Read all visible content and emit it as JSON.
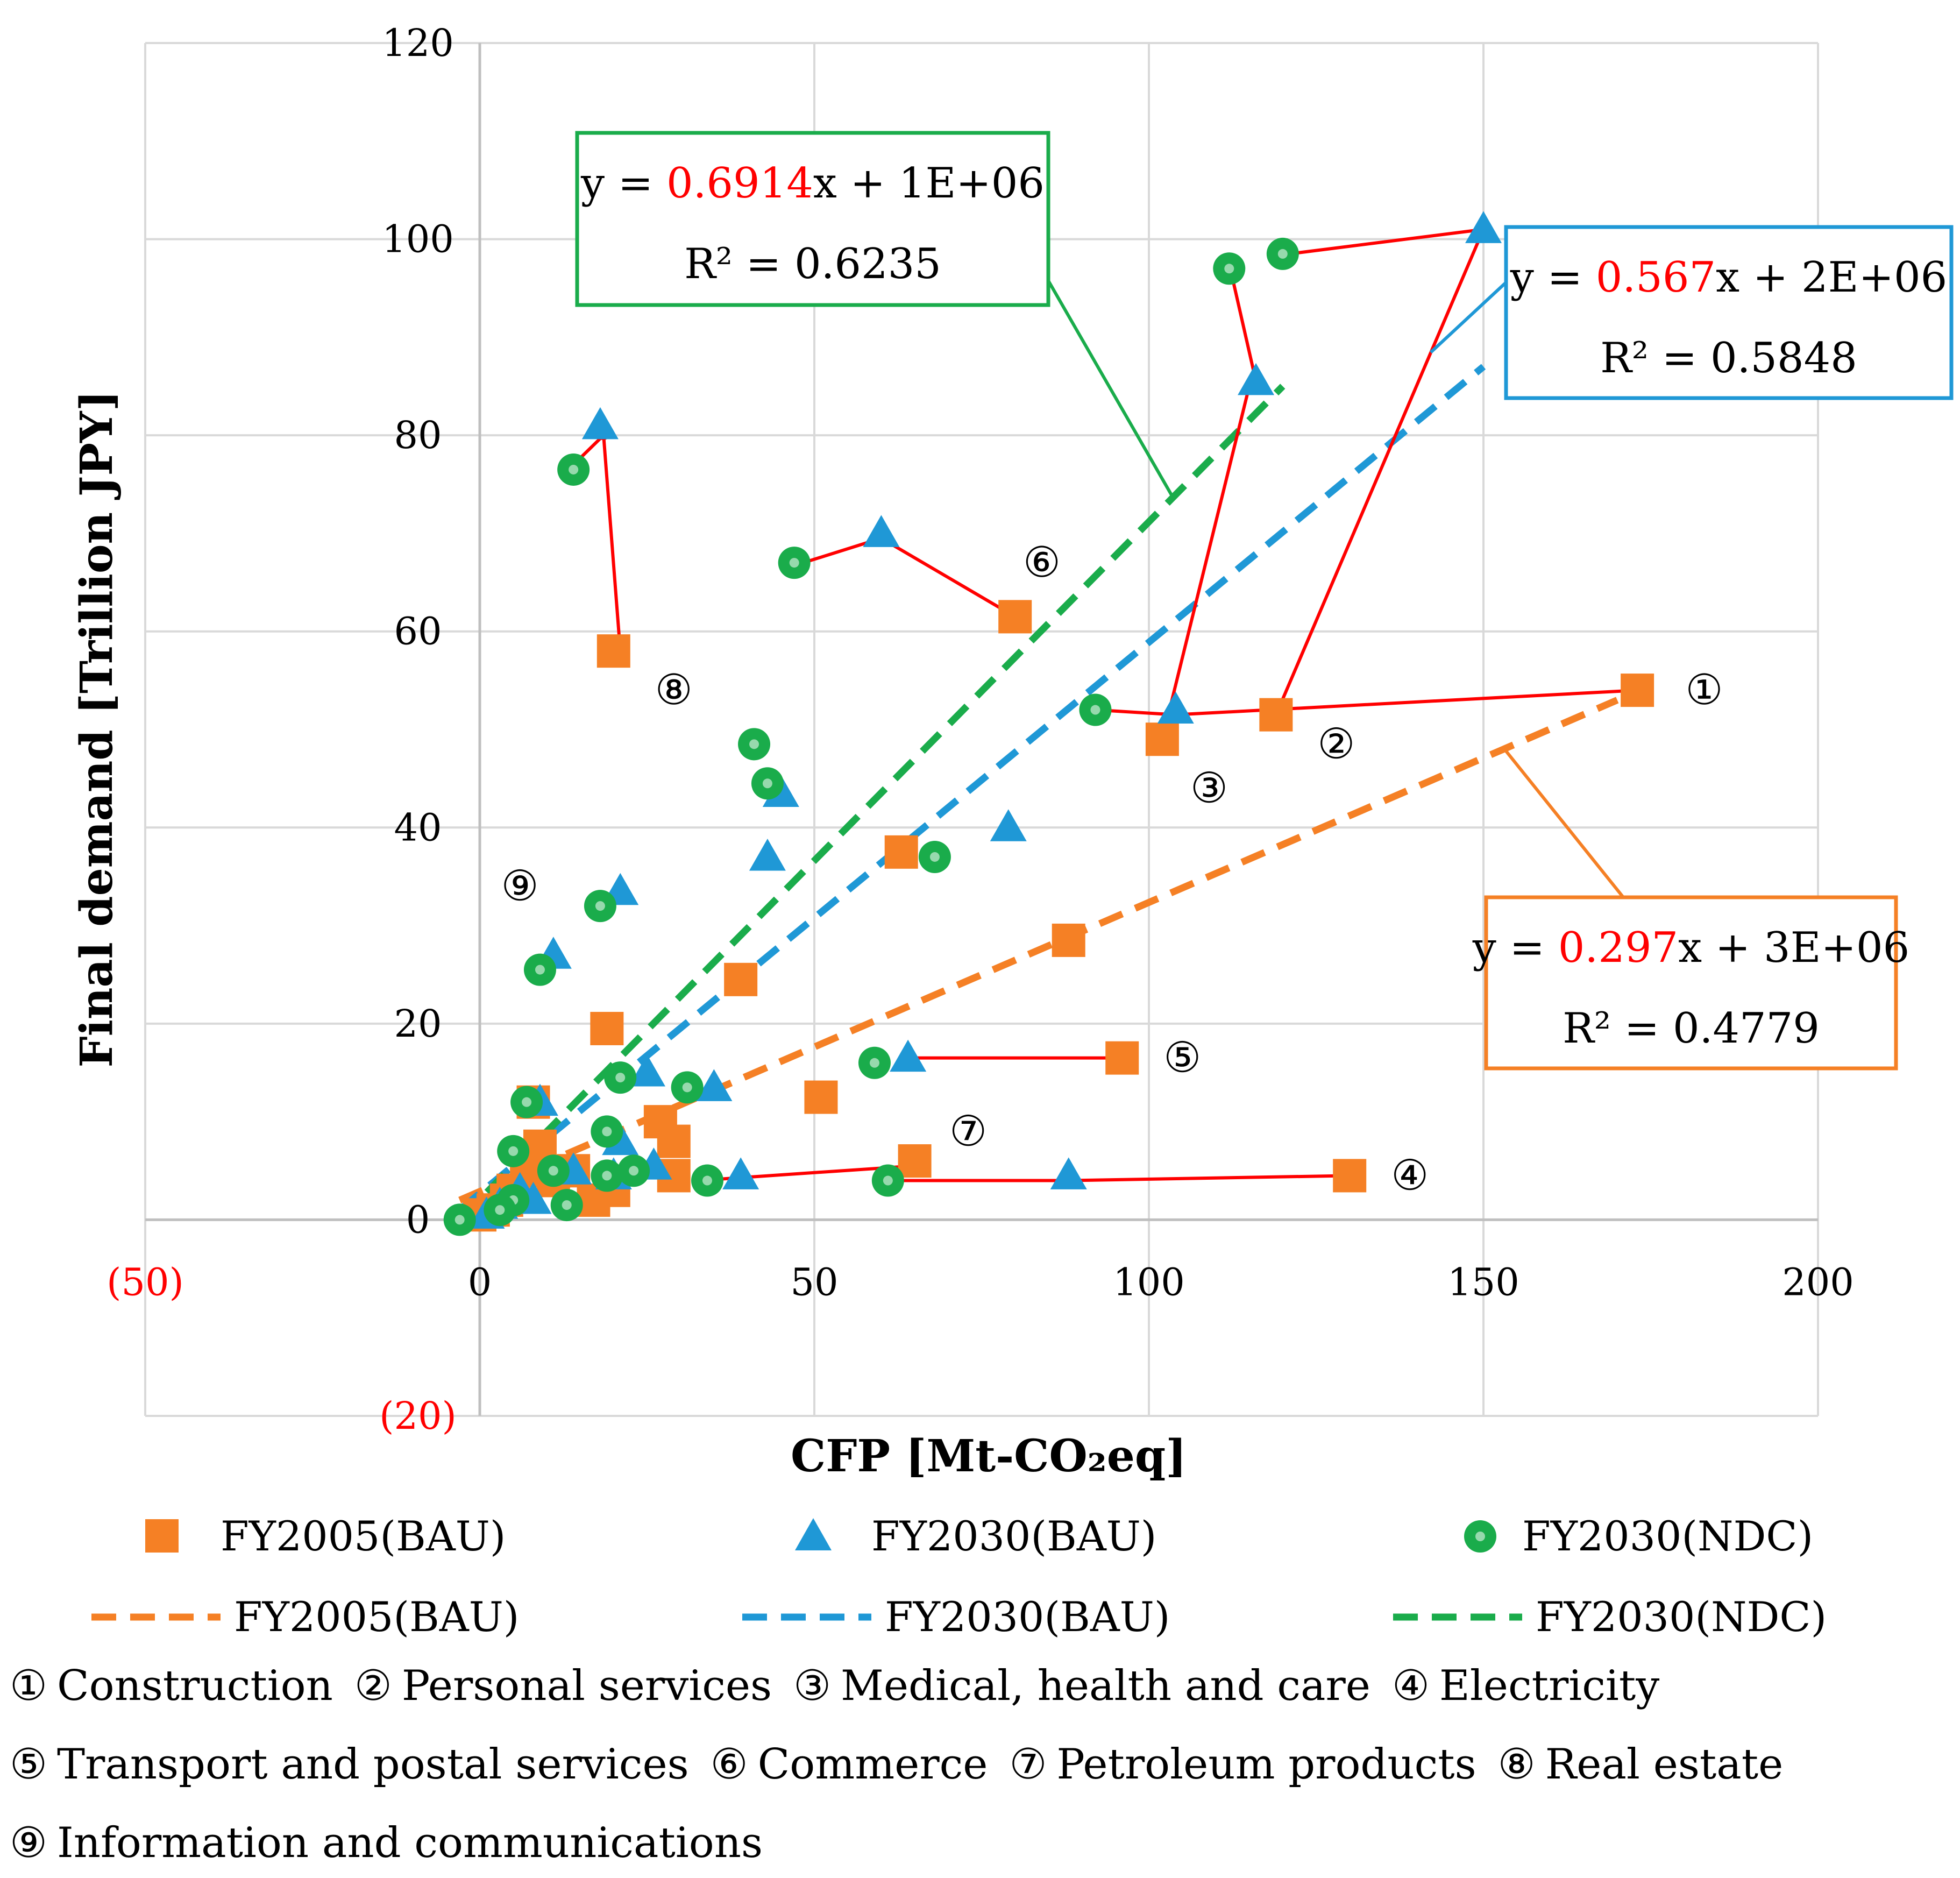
{
  "chart_data": {
    "type": "scatter",
    "title": "",
    "xlabel": "CFP [Mt-CO₂eq]",
    "ylabel": "Final demand [Trillion JPY]",
    "xlim": [
      -50,
      200
    ],
    "ylim": [
      -20,
      120
    ],
    "x_ticks": [
      "(50)",
      "0",
      "50",
      "100",
      "150",
      "200"
    ],
    "y_ticks": [
      "(20)",
      "0",
      "20",
      "40",
      "60",
      "80",
      "100",
      "120"
    ],
    "grid": true,
    "legend_position": "bottom",
    "colors": {
      "fy2005": "#f58025",
      "fy2030bau": "#1f98d6",
      "fy2030ndc": "#1aac4b",
      "arrow": "#ff0000",
      "neg_tick": "#ff0000",
      "grid": "#d9d9d9"
    },
    "series": [
      {
        "name": "FY2005(BAU)",
        "marker": "square",
        "points": [
          [
            173,
            54
          ],
          [
            119,
            51.5
          ],
          [
            102,
            49
          ],
          [
            130,
            4.5
          ],
          [
            96,
            16.5
          ],
          [
            80,
            61.5
          ],
          [
            65,
            6
          ],
          [
            20,
            58
          ],
          [
            88,
            28.5
          ],
          [
            63,
            37.5
          ],
          [
            39,
            24.5
          ],
          [
            19,
            19.5
          ],
          [
            51,
            12.5
          ],
          [
            29,
            8
          ],
          [
            27,
            10
          ],
          [
            29,
            4.5
          ],
          [
            20,
            3
          ],
          [
            17,
            2
          ],
          [
            14,
            5
          ],
          [
            11,
            4
          ],
          [
            9,
            7.5
          ],
          [
            8,
            12
          ],
          [
            7,
            5
          ],
          [
            5,
            3
          ],
          [
            4,
            2
          ],
          [
            2,
            1
          ],
          [
            0,
            0.5
          ]
        ]
      },
      {
        "name": "FY2030(BAU)",
        "marker": "triangle",
        "points": [
          [
            150,
            101
          ],
          [
            116,
            85.5
          ],
          [
            104,
            52
          ],
          [
            88,
            4.5
          ],
          [
            64,
            16.5
          ],
          [
            60,
            70
          ],
          [
            39,
            4.5
          ],
          [
            18,
            81
          ],
          [
            79,
            40
          ],
          [
            45,
            43.5
          ],
          [
            43,
            37
          ],
          [
            21,
            33.5
          ],
          [
            11,
            27
          ],
          [
            25,
            15
          ],
          [
            35,
            13.5
          ],
          [
            26,
            5.5
          ],
          [
            21,
            8
          ],
          [
            20,
            4.5
          ],
          [
            9,
            12
          ],
          [
            14,
            5
          ],
          [
            8,
            2
          ],
          [
            6,
            3
          ],
          [
            3,
            1.5
          ],
          [
            1,
            0.5
          ]
        ]
      },
      {
        "name": "FY2030(NDC)",
        "marker": "circle",
        "points": [
          [
            120,
            98.5
          ],
          [
            112,
            97
          ],
          [
            92,
            52
          ],
          [
            61,
            4
          ],
          [
            59,
            16
          ],
          [
            47,
            67
          ],
          [
            34,
            4
          ],
          [
            14,
            76.5
          ],
          [
            68,
            37
          ],
          [
            41,
            48.5
          ],
          [
            43,
            44.5
          ],
          [
            18,
            32
          ],
          [
            9,
            25.5
          ],
          [
            31,
            13.5
          ],
          [
            21,
            14.5
          ],
          [
            23,
            5
          ],
          [
            19,
            9
          ],
          [
            19,
            4.5
          ],
          [
            7,
            12
          ],
          [
            13,
            1.5
          ],
          [
            11,
            5
          ],
          [
            5,
            7
          ],
          [
            5,
            2
          ],
          [
            3,
            1
          ],
          [
            -3,
            0
          ]
        ]
      }
    ],
    "trendlines": [
      {
        "name": "FY2005(BAU)",
        "slope_label": "0.297",
        "equation_rest": "x + 3E+06",
        "r2": "R² = 0.4779",
        "from": [
          -3,
          2
        ],
        "to": [
          170,
          53
        ]
      },
      {
        "name": "FY2030(BAU)",
        "slope_label": "0.567",
        "equation_rest": "x + 2E+06",
        "r2": "R² = 0.5848",
        "from": [
          -3,
          1
        ],
        "to": [
          150,
          87
        ]
      },
      {
        "name": "FY2030(NDC)",
        "slope_label": "0.6914",
        "equation_rest": "x + 1E+06",
        "r2": "R² = 0.6235",
        "from": [
          -3,
          0
        ],
        "to": [
          120,
          85
        ]
      }
    ],
    "equation_prefix": "y = ",
    "arrows": [
      [
        [
          173,
          54
        ],
        [
          104,
          51.5
        ]
      ],
      [
        [
          104,
          51.5
        ],
        [
          92,
          52
        ]
      ],
      [
        [
          119,
          51.5
        ],
        [
          150,
          101
        ]
      ],
      [
        [
          150,
          101
        ],
        [
          121,
          98.5
        ]
      ],
      [
        [
          102,
          49
        ],
        [
          115,
          85
        ]
      ],
      [
        [
          116,
          85.5
        ],
        [
          112,
          97.5
        ]
      ],
      [
        [
          130,
          4.5
        ],
        [
          88,
          4
        ]
      ],
      [
        [
          88,
          4
        ],
        [
          61,
          4
        ]
      ],
      [
        [
          96,
          16.5
        ],
        [
          63,
          16.5
        ]
      ],
      [
        [
          80,
          61.5
        ],
        [
          60,
          69.5
        ]
      ],
      [
        [
          60,
          69.5
        ],
        [
          46,
          66.5
        ]
      ],
      [
        [
          65,
          5.5
        ],
        [
          39,
          4.3
        ]
      ],
      [
        [
          39,
          4.3
        ],
        [
          33,
          4
        ]
      ],
      [
        [
          21,
          58
        ],
        [
          18.5,
          80
        ]
      ],
      [
        [
          18.5,
          80
        ],
        [
          14,
          77
        ]
      ]
    ],
    "sector_labels": [
      {
        "mark": "①",
        "name": "Construction",
        "anchor": [
          183,
          54
        ]
      },
      {
        "mark": "②",
        "name": "Personal services",
        "anchor": [
          128,
          48.5
        ]
      },
      {
        "mark": "③",
        "name": "Medical, health and care",
        "anchor": [
          109,
          44
        ]
      },
      {
        "mark": "④",
        "name": "Electricity",
        "anchor": [
          139,
          4.5
        ]
      },
      {
        "mark": "⑤",
        "name": "Transport and postal services",
        "anchor": [
          105,
          16.5
        ]
      },
      {
        "mark": "⑥",
        "name": "Commerce",
        "anchor": [
          84,
          67
        ]
      },
      {
        "mark": "⑦",
        "name": "Petroleum products",
        "anchor": [
          73,
          9
        ]
      },
      {
        "mark": "⑧",
        "name": "Real estate",
        "anchor": [
          29,
          54
        ]
      },
      {
        "mark": "⑨",
        "name": "Information and communications",
        "anchor": [
          6,
          34
        ]
      }
    ]
  }
}
